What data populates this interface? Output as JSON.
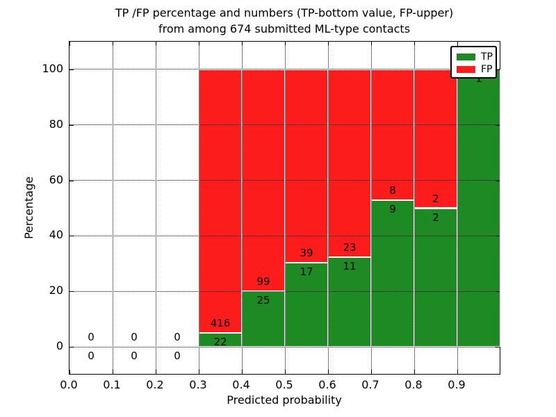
{
  "title": {
    "line1": "TP /FP percentage and numbers (TP-bottom value, FP-upper)",
    "line2": "from among 674 submitted ML-type contacts"
  },
  "axes": {
    "x_label": "Predicted probability",
    "y_label": "Percentage",
    "x_tick_labels": [
      "0.0",
      "0.1",
      "0.2",
      "0.3",
      "0.4",
      "0.5",
      "0.6",
      "0.7",
      "0.8",
      "0.9"
    ],
    "y_tick_labels": [
      "0",
      "20",
      "40",
      "60",
      "80",
      "100"
    ]
  },
  "legend": {
    "items": [
      {
        "label": "TP",
        "color": "#1e8a23"
      },
      {
        "label": "FP",
        "color": "#fd1c1c"
      }
    ]
  },
  "chart_data": {
    "type": "bar",
    "stacked": true,
    "normalized": "each non-empty bin scaled to 100%",
    "title": "TP /FP percentage and numbers (TP-bottom value, FP-upper) from among 674 submitted ML-type contacts",
    "xlabel": "Predicted probability",
    "ylabel": "Percentage",
    "xlim": [
      0.0,
      1.0
    ],
    "ylim": [
      -10,
      110
    ],
    "grid": true,
    "legend_position": "upper right",
    "total_contacts": 674,
    "bin_width": 0.1,
    "colors": {
      "tp": "#1e8a23",
      "fp": "#fd1c1c"
    },
    "y_grid_values": [
      0,
      20,
      40,
      60,
      80,
      100
    ],
    "x_grid_values": [
      0.1,
      0.2,
      0.3,
      0.4,
      0.5,
      0.6,
      0.7,
      0.8,
      0.9
    ],
    "bins": [
      {
        "x_range": [
          0.0,
          0.1
        ],
        "tp_count": 0,
        "fp_count": 0,
        "tp_percent": 0.0,
        "fp_percent": 0.0
      },
      {
        "x_range": [
          0.1,
          0.2
        ],
        "tp_count": 0,
        "fp_count": 0,
        "tp_percent": 0.0,
        "fp_percent": 0.0
      },
      {
        "x_range": [
          0.2,
          0.3
        ],
        "tp_count": 0,
        "fp_count": 0,
        "tp_percent": 0.0,
        "fp_percent": 0.0
      },
      {
        "x_range": [
          0.3,
          0.4
        ],
        "tp_count": 22,
        "fp_count": 416,
        "tp_percent": 5.0,
        "fp_percent": 95.0
      },
      {
        "x_range": [
          0.4,
          0.5
        ],
        "tp_count": 25,
        "fp_count": 99,
        "tp_percent": 20.2,
        "fp_percent": 79.8
      },
      {
        "x_range": [
          0.5,
          0.6
        ],
        "tp_count": 17,
        "fp_count": 39,
        "tp_percent": 30.4,
        "fp_percent": 69.6
      },
      {
        "x_range": [
          0.6,
          0.7
        ],
        "tp_count": 11,
        "fp_count": 23,
        "tp_percent": 32.4,
        "fp_percent": 67.6
      },
      {
        "x_range": [
          0.7,
          0.8
        ],
        "tp_count": 9,
        "fp_count": 8,
        "tp_percent": 52.9,
        "fp_percent": 47.1
      },
      {
        "x_range": [
          0.8,
          0.9
        ],
        "tp_count": 2,
        "fp_count": 2,
        "tp_percent": 50.0,
        "fp_percent": 50.0
      },
      {
        "x_range": [
          0.9,
          1.0
        ],
        "tp_count": 1,
        "fp_count": 0,
        "tp_percent": 100.0,
        "fp_percent": 0.0
      }
    ]
  }
}
